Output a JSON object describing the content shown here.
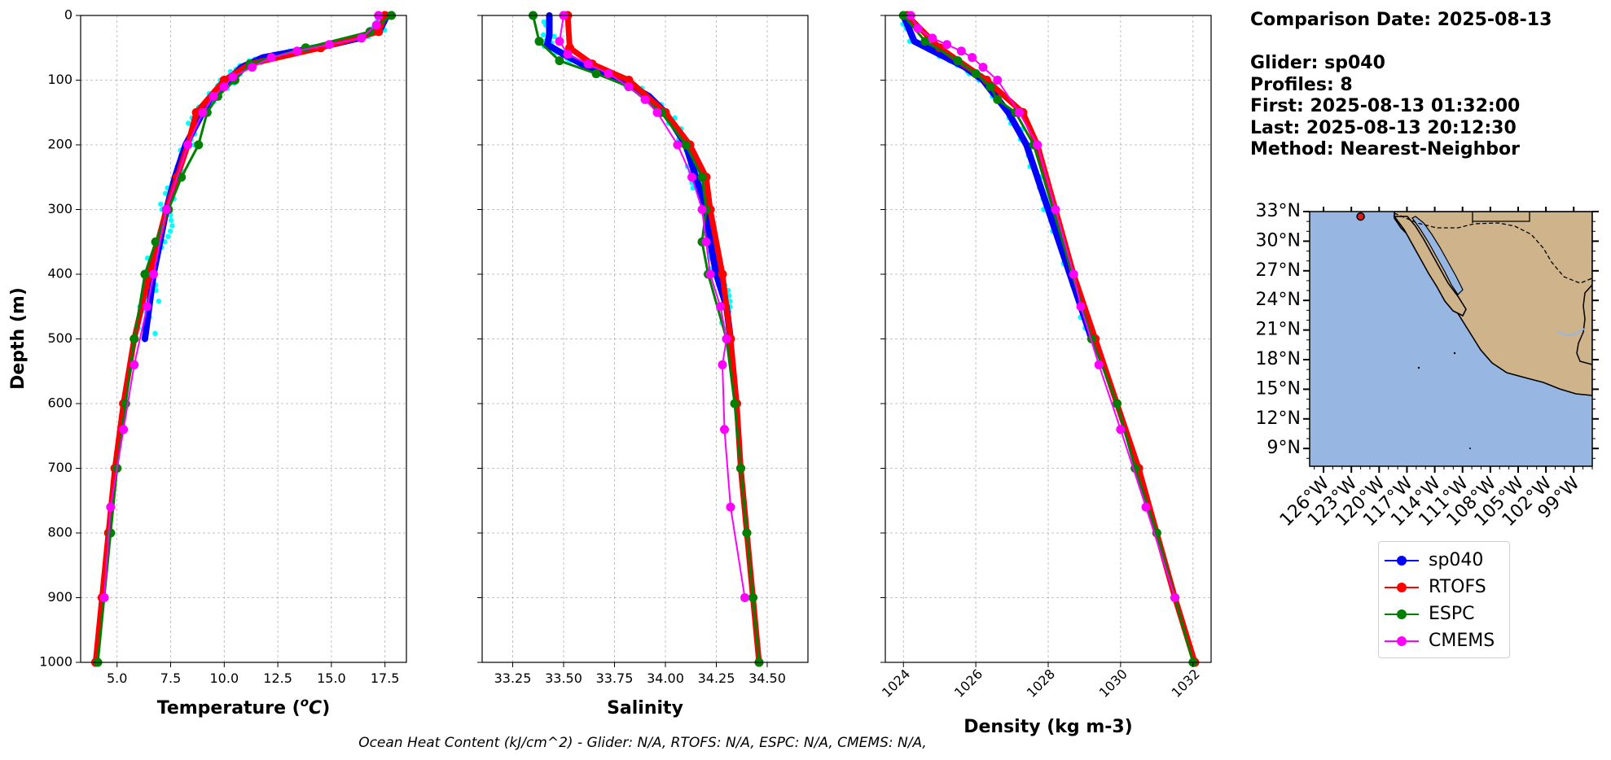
{
  "info": {
    "comparison_date": "Comparison Date: 2025-08-13",
    "glider": "Glider: sp040",
    "profiles": "Profiles: 8",
    "first": "First: 2025-08-13 01:32:00",
    "last": "Last: 2025-08-13 20:12:30",
    "method": "Method: Nearest-Neighbor"
  },
  "footer": "Ocean Heat Content (kJ/cm^2) - Glider: N/A,  RTOFS: N/A,  ESPC: N/A,  CMEMS: N/A,",
  "colors": {
    "sp040": "#0000ff",
    "glider_raw": "#00ffff",
    "rtofs": "#ff0000",
    "espc": "#008000",
    "cmems": "#ff00ff",
    "ocean": "#97b6e1",
    "land": "#cfb38b"
  },
  "legend": [
    {
      "label": "sp040",
      "color": "#0000ff"
    },
    {
      "label": "RTOFS",
      "color": "#ff0000"
    },
    {
      "label": "ESPC",
      "color": "#008000"
    },
    {
      "label": "CMEMS",
      "color": "#ff00ff"
    }
  ],
  "chart_data": [
    {
      "type": "line",
      "id": "temperature",
      "xlabel": "Temperature (°C)",
      "ylabel": "Depth (m)",
      "xlim": [
        3.3,
        18.5
      ],
      "ylim": [
        1000,
        0
      ],
      "xticks": [
        5.0,
        7.5,
        10.0,
        12.5,
        15.0,
        17.5
      ],
      "xtick_labels": [
        "5.0",
        "7.5",
        "10.0",
        "12.5",
        "15.0",
        "17.5"
      ],
      "yticks": [
        0,
        100,
        200,
        300,
        400,
        500,
        600,
        700,
        800,
        900,
        1000
      ],
      "grid": true,
      "series": [
        {
          "name": "sp040",
          "depth": [
            0,
            20,
            35,
            45,
            55,
            65,
            80,
            100,
            125,
            150,
            200,
            250,
            300,
            350,
            400,
            450,
            500
          ],
          "values": [
            17.6,
            17.3,
            16.3,
            15.0,
            13.4,
            11.8,
            10.8,
            10.2,
            9.4,
            9.0,
            8.2,
            7.7,
            7.3,
            7.0,
            6.7,
            6.5,
            6.3
          ]
        },
        {
          "name": "RTOFS",
          "depth": [
            0,
            25,
            50,
            75,
            100,
            150,
            200,
            250,
            300,
            400,
            500,
            600,
            700,
            800,
            900,
            1000
          ],
          "values": [
            17.5,
            17.2,
            14.5,
            11.2,
            10.0,
            8.7,
            8.3,
            7.8,
            7.3,
            6.5,
            5.8,
            5.3,
            4.9,
            4.6,
            4.3,
            4.0
          ]
        },
        {
          "name": "ESPC",
          "depth": [
            0,
            25,
            50,
            75,
            100,
            125,
            150,
            200,
            250,
            300,
            350,
            400,
            500,
            600,
            700,
            800,
            900,
            1000
          ],
          "values": [
            17.8,
            16.8,
            13.8,
            11.2,
            10.5,
            9.7,
            9.2,
            8.8,
            8.0,
            7.4,
            6.8,
            6.3,
            5.8,
            5.4,
            5.0,
            4.7,
            4.4,
            4.1
          ]
        },
        {
          "name": "CMEMS",
          "depth": [
            0,
            15,
            35,
            45,
            55,
            65,
            80,
            95,
            110,
            125,
            150,
            200,
            300,
            400,
            450,
            540,
            640,
            760,
            900
          ],
          "values": [
            17.2,
            17.1,
            16.4,
            14.9,
            13.4,
            12.2,
            11.3,
            10.4,
            10.0,
            9.5,
            9.0,
            8.3,
            7.3,
            6.7,
            6.4,
            5.8,
            5.3,
            4.7,
            4.4
          ]
        }
      ]
    },
    {
      "type": "line",
      "id": "salinity",
      "xlabel": "Salinity",
      "xlim": [
        33.1,
        34.7
      ],
      "ylim": [
        1000,
        0
      ],
      "xticks": [
        33.25,
        33.5,
        33.75,
        34.0,
        34.25,
        34.5
      ],
      "xtick_labels": [
        "33.25",
        "33.50",
        "33.75",
        "34.00",
        "34.25",
        "34.50"
      ],
      "grid": true,
      "series": [
        {
          "name": "sp040",
          "depth": [
            0,
            30,
            45,
            60,
            80,
            100,
            125,
            150,
            200,
            250,
            300,
            350,
            400,
            450,
            500
          ],
          "values": [
            33.43,
            33.43,
            33.42,
            33.5,
            33.62,
            33.78,
            33.92,
            34.0,
            34.1,
            34.15,
            34.2,
            34.22,
            34.25,
            34.3,
            34.32
          ]
        },
        {
          "name": "RTOFS",
          "depth": [
            0,
            50,
            75,
            100,
            150,
            200,
            250,
            300,
            400,
            500,
            600,
            700,
            800,
            900,
            1000
          ],
          "values": [
            33.52,
            33.53,
            33.64,
            33.82,
            34.0,
            34.12,
            34.2,
            34.22,
            34.28,
            34.32,
            34.35,
            34.37,
            34.4,
            34.43,
            34.46
          ]
        },
        {
          "name": "ESPC",
          "depth": [
            0,
            40,
            70,
            90,
            110,
            150,
            200,
            250,
            300,
            350,
            400,
            500,
            600,
            700,
            800,
            900,
            1000
          ],
          "values": [
            33.35,
            33.38,
            33.48,
            33.66,
            33.82,
            33.98,
            34.1,
            34.18,
            34.2,
            34.18,
            34.21,
            34.3,
            34.34,
            34.37,
            34.4,
            34.43,
            34.46
          ]
        },
        {
          "name": "CMEMS",
          "depth": [
            0,
            40,
            60,
            75,
            90,
            110,
            130,
            150,
            200,
            250,
            300,
            350,
            400,
            450,
            500,
            540,
            640,
            760,
            900
          ],
          "values": [
            33.5,
            33.48,
            33.52,
            33.62,
            33.72,
            33.82,
            33.9,
            33.96,
            34.06,
            34.13,
            34.18,
            34.2,
            34.22,
            34.27,
            34.3,
            34.28,
            34.29,
            34.32,
            34.39
          ]
        }
      ]
    },
    {
      "type": "line",
      "id": "density",
      "xlabel": "Density (kg m-3)",
      "xlim": [
        1023.5,
        1032.5
      ],
      "ylim": [
        1000,
        0
      ],
      "xticks": [
        1024,
        1026,
        1028,
        1030,
        1032
      ],
      "xtick_labels": [
        "1024",
        "1026",
        "1028",
        "1030",
        "1032"
      ],
      "grid": true,
      "series": [
        {
          "name": "sp040",
          "depth": [
            0,
            40,
            60,
            80,
            100,
            150,
            200,
            300,
            400,
            500
          ],
          "values": [
            1024.0,
            1024.3,
            1025.0,
            1025.7,
            1026.2,
            1026.9,
            1027.4,
            1028.0,
            1028.6,
            1029.2
          ]
        },
        {
          "name": "RTOFS",
          "depth": [
            0,
            50,
            100,
            150,
            200,
            300,
            400,
            500,
            600,
            700,
            800,
            900,
            1000
          ],
          "values": [
            1024.1,
            1025.0,
            1026.3,
            1027.3,
            1027.7,
            1028.2,
            1028.7,
            1029.3,
            1029.9,
            1030.5,
            1031.0,
            1031.5,
            1032.05
          ]
        },
        {
          "name": "ESPC",
          "depth": [
            0,
            40,
            70,
            90,
            110,
            130,
            150,
            200,
            500,
            600,
            700,
            800,
            900,
            1000
          ],
          "values": [
            1024.0,
            1024.6,
            1025.5,
            1026.0,
            1026.4,
            1026.6,
            1027.1,
            1027.6,
            1029.2,
            1029.9,
            1030.4,
            1031.0,
            1031.5,
            1032.0
          ]
        },
        {
          "name": "CMEMS",
          "depth": [
            0,
            20,
            35,
            45,
            55,
            65,
            80,
            100,
            150,
            200,
            300,
            400,
            450,
            540,
            640,
            760,
            900
          ],
          "values": [
            1024.2,
            1024.4,
            1024.8,
            1025.2,
            1025.6,
            1025.9,
            1026.2,
            1026.6,
            1027.2,
            1027.7,
            1028.2,
            1028.7,
            1028.9,
            1029.4,
            1030.0,
            1030.7,
            1031.5
          ]
        }
      ]
    },
    {
      "type": "map",
      "id": "location_map",
      "lon_ticks": [
        "126°W",
        "123°W",
        "120°W",
        "117°W",
        "114°W",
        "111°W",
        "108°W",
        "105°W",
        "102°W",
        "99°W"
      ],
      "lat_ticks": [
        "33°N",
        "30°N",
        "27°N",
        "24°N",
        "21°N",
        "18°N",
        "15°N",
        "12°N",
        "9°N"
      ],
      "glider_position": {
        "lon": -122.0,
        "lat": 32.5
      }
    }
  ]
}
